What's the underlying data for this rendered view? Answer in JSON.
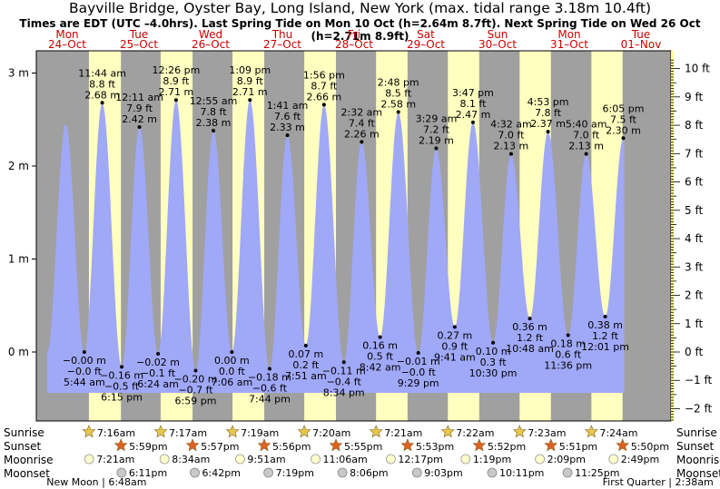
{
  "chart_data": {
    "type": "area",
    "title": "Bayville Bridge, Oyster Bay, Long Island, New York (max. tidal range 3.18m 10.4ft)",
    "subtitle": "Times are EDT (UTC –4.0hrs). Last Spring Tide on Mon 10 Oct (h=2.64m 8.7ft). Next Spring Tide on Wed 26 Oct (h=2.71m 8.9ft)",
    "ylim_m": [
      -0.85,
      3.15
    ],
    "y_ticks_left": [
      {
        "v": 0,
        "label": "0 m"
      },
      {
        "v": 1,
        "label": "1 m"
      },
      {
        "v": 2,
        "label": "2 m"
      },
      {
        "v": 3,
        "label": "3 m"
      }
    ],
    "y_ticks_right_ft": [
      -2,
      -1,
      0,
      1,
      2,
      3,
      4,
      5,
      6,
      7,
      8,
      9,
      10
    ],
    "y_ticks_right_labels": [
      "−2 ft",
      "−1 ft",
      "0 ft",
      "1 ft",
      "2 ft",
      "3 ft",
      "4 ft",
      "5 ft",
      "6 ft",
      "7 ft",
      "8 ft",
      "9 ft",
      "10 ft"
    ],
    "days": [
      {
        "dow": "Mon",
        "date": "24–Oct"
      },
      {
        "dow": "Tue",
        "date": "25–Oct"
      },
      {
        "dow": "Wed",
        "date": "26–Oct"
      },
      {
        "dow": "Thu",
        "date": "27–Oct"
      },
      {
        "dow": "Fri",
        "date": "28–Oct"
      },
      {
        "dow": "Sat",
        "date": "29–Oct"
      },
      {
        "dow": "Sun",
        "date": "30–Oct"
      },
      {
        "dow": "Mon",
        "date": "31–Oct"
      },
      {
        "dow": "Tue",
        "date": "01–Nov"
      }
    ],
    "first_high_unlabeled": {
      "time_h": -0.5,
      "m": 2.45
    },
    "tides": [
      {
        "type": "low",
        "day": 0,
        "time": "5:44 am",
        "m": "−0.00 m",
        "ft": "−0.0 ft",
        "h": 5.73,
        "value": 0.0
      },
      {
        "type": "high",
        "day": 0,
        "time": "11:44 am",
        "m": "2.68 m",
        "ft": "8.8 ft",
        "h": 11.73,
        "value": 2.68
      },
      {
        "type": "low",
        "day": 0,
        "time": "6:15 pm",
        "m": "−0.16 m",
        "ft": "−0.5 ft",
        "h": 18.25,
        "value": -0.16
      },
      {
        "type": "high",
        "day": 1,
        "time": "12:11 am",
        "m": "2.42 m",
        "ft": "7.9 ft",
        "h": 24.18,
        "value": 2.42
      },
      {
        "type": "low",
        "day": 1,
        "time": "6:24 am",
        "m": "−0.02 m",
        "ft": "−0.1 ft",
        "h": 30.4,
        "value": -0.02
      },
      {
        "type": "high",
        "day": 1,
        "time": "12:26 pm",
        "m": "2.71 m",
        "ft": "8.9 ft",
        "h": 36.43,
        "value": 2.71
      },
      {
        "type": "low",
        "day": 1,
        "time": "6:59 pm",
        "m": "−0.20 m",
        "ft": "−0.7 ft",
        "h": 42.98,
        "value": -0.2
      },
      {
        "type": "high",
        "day": 2,
        "time": "12:55 am",
        "m": "2.38 m",
        "ft": "7.8 ft",
        "h": 48.92,
        "value": 2.38
      },
      {
        "type": "low",
        "day": 2,
        "time": "7:06 am",
        "m": "0.00 m",
        "ft": "0.0 ft",
        "h": 55.1,
        "value": 0.0
      },
      {
        "type": "high",
        "day": 2,
        "time": "1:09 pm",
        "m": "2.71 m",
        "ft": "8.9 ft",
        "h": 61.15,
        "value": 2.71
      },
      {
        "type": "low",
        "day": 2,
        "time": "7:44 pm",
        "m": "−0.18 m",
        "ft": "−0.6 ft",
        "h": 67.73,
        "value": -0.18
      },
      {
        "type": "high",
        "day": 3,
        "time": "1:41 am",
        "m": "2.33 m",
        "ft": "7.6 ft",
        "h": 73.68,
        "value": 2.33
      },
      {
        "type": "low",
        "day": 3,
        "time": "7:51 am",
        "m": "0.07 m",
        "ft": "0.2 ft",
        "h": 79.85,
        "value": 0.07
      },
      {
        "type": "high",
        "day": 3,
        "time": "1:56 pm",
        "m": "2.66 m",
        "ft": "8.7 ft",
        "h": 85.93,
        "value": 2.66
      },
      {
        "type": "low",
        "day": 3,
        "time": "8:34 pm",
        "m": "−0.11 m",
        "ft": "−0.4 ft",
        "h": 92.57,
        "value": -0.11
      },
      {
        "type": "high",
        "day": 4,
        "time": "2:32 am",
        "m": "2.26 m",
        "ft": "7.4 ft",
        "h": 98.53,
        "value": 2.26
      },
      {
        "type": "low",
        "day": 4,
        "time": "8:42 am",
        "m": "0.16 m",
        "ft": "0.5 ft",
        "h": 104.7,
        "value": 0.16
      },
      {
        "type": "high",
        "day": 4,
        "time": "2:48 pm",
        "m": "2.58 m",
        "ft": "8.5 ft",
        "h": 110.8,
        "value": 2.58
      },
      {
        "type": "low",
        "day": 4,
        "time": "9:29 pm",
        "m": "−0.01 m",
        "ft": "−0.0 ft",
        "h": 117.48,
        "value": -0.01
      },
      {
        "type": "high",
        "day": 5,
        "time": "3:29 am",
        "m": "2.19 m",
        "ft": "7.2 ft",
        "h": 123.48,
        "value": 2.19
      },
      {
        "type": "low",
        "day": 5,
        "time": "9:41 am",
        "m": "0.27 m",
        "ft": "0.9 ft",
        "h": 129.68,
        "value": 0.27
      },
      {
        "type": "high",
        "day": 5,
        "time": "3:47 pm",
        "m": "2.47 m",
        "ft": "8.1 ft",
        "h": 135.78,
        "value": 2.47
      },
      {
        "type": "low",
        "day": 5,
        "time": "10:30 pm",
        "m": "0.10 m",
        "ft": "0.3 ft",
        "h": 142.5,
        "value": 0.1
      },
      {
        "type": "high",
        "day": 6,
        "time": "4:32 am",
        "m": "2.13 m",
        "ft": "7.0 ft",
        "h": 148.53,
        "value": 2.13
      },
      {
        "type": "low",
        "day": 6,
        "time": "10:48 am",
        "m": "0.36 m",
        "ft": "1.2 ft",
        "h": 154.8,
        "value": 0.36
      },
      {
        "type": "high",
        "day": 6,
        "time": "4:53 pm",
        "m": "2.37 m",
        "ft": "7.8 ft",
        "h": 160.88,
        "value": 2.37
      },
      {
        "type": "low",
        "day": 6,
        "time": "11:36 pm",
        "m": "0.18 m",
        "ft": "0.6 ft",
        "h": 167.6,
        "value": 0.18
      },
      {
        "type": "high",
        "day": 7,
        "time": "5:40 am",
        "m": "2.13 m",
        "ft": "7.0 ft",
        "h": 173.67,
        "value": 2.13
      },
      {
        "type": "low",
        "day": 7,
        "time": "12:01 pm",
        "m": "0.38 m",
        "ft": "1.2 ft",
        "h": 180.02,
        "value": 0.38
      },
      {
        "type": "high",
        "day": 7,
        "time": "6:05 pm",
        "m": "2.30 m",
        "ft": "7.5 ft",
        "h": 186.08,
        "value": 2.3
      }
    ],
    "sun": [
      {
        "rise": "7:16am",
        "set": "5:59pm",
        "rise_h": 7.27,
        "set_h": 17.98
      },
      {
        "rise": "7:17am",
        "set": "5:57pm",
        "rise_h": 31.28,
        "set_h": 41.95
      },
      {
        "rise": "7:19am",
        "set": "5:56pm",
        "rise_h": 55.32,
        "set_h": 65.93
      },
      {
        "rise": "7:20am",
        "set": "5:55pm",
        "rise_h": 79.33,
        "set_h": 89.92
      },
      {
        "rise": "7:21am",
        "set": "5:53pm",
        "rise_h": 103.35,
        "set_h": 113.88
      },
      {
        "rise": "7:22am",
        "set": "5:52pm",
        "rise_h": 127.37,
        "set_h": 137.87
      },
      {
        "rise": "7:23am",
        "set": "5:51pm",
        "rise_h": 151.38,
        "set_h": 161.85
      },
      {
        "rise": "7:24am",
        "set": "5:50pm",
        "rise_h": 175.4,
        "set_h": 185.83
      }
    ],
    "moonrise": [
      {
        "label": "7:21am",
        "h": 7.35
      },
      {
        "label": "8:34am",
        "h": 32.57
      },
      {
        "label": "9:51am",
        "h": 57.85
      },
      {
        "label": "11:06am",
        "h": 83.1
      },
      {
        "label": "12:17pm",
        "h": 108.28
      },
      {
        "label": "1:19pm",
        "h": 133.32
      },
      {
        "label": "2:09pm",
        "h": 158.15
      },
      {
        "label": "2:49pm",
        "h": 182.82
      }
    ],
    "moonset": [
      {
        "label": "6:11pm",
        "h": 18.18
      },
      {
        "label": "6:42pm",
        "h": 42.7
      },
      {
        "label": "7:19pm",
        "h": 67.32
      },
      {
        "label": "8:06pm",
        "h": 92.1
      },
      {
        "label": "9:03pm",
        "h": 117.05
      },
      {
        "label": "10:11pm",
        "h": 142.18
      },
      {
        "label": "11:25pm",
        "h": 167.42
      }
    ],
    "row_labels": {
      "sunrise": "Sunrise",
      "sunset": "Sunset",
      "moonrise": "Moonrise",
      "moonset": "Moonset"
    },
    "moon_phases": [
      {
        "label": "New Moon | 6:48am",
        "h": 6.8
      },
      {
        "label": "First Quarter | 2:38am",
        "h": 194.63
      }
    ],
    "colors": {
      "night": "#a0a0a0",
      "day": "#ffffc0",
      "water": "#a0a8f8",
      "day_label": "#cc0000",
      "star": "#e8c84a",
      "sunset_star": "#e06020",
      "moonrise": "#ffffcc",
      "moonset": "#c8c8c8"
    }
  }
}
